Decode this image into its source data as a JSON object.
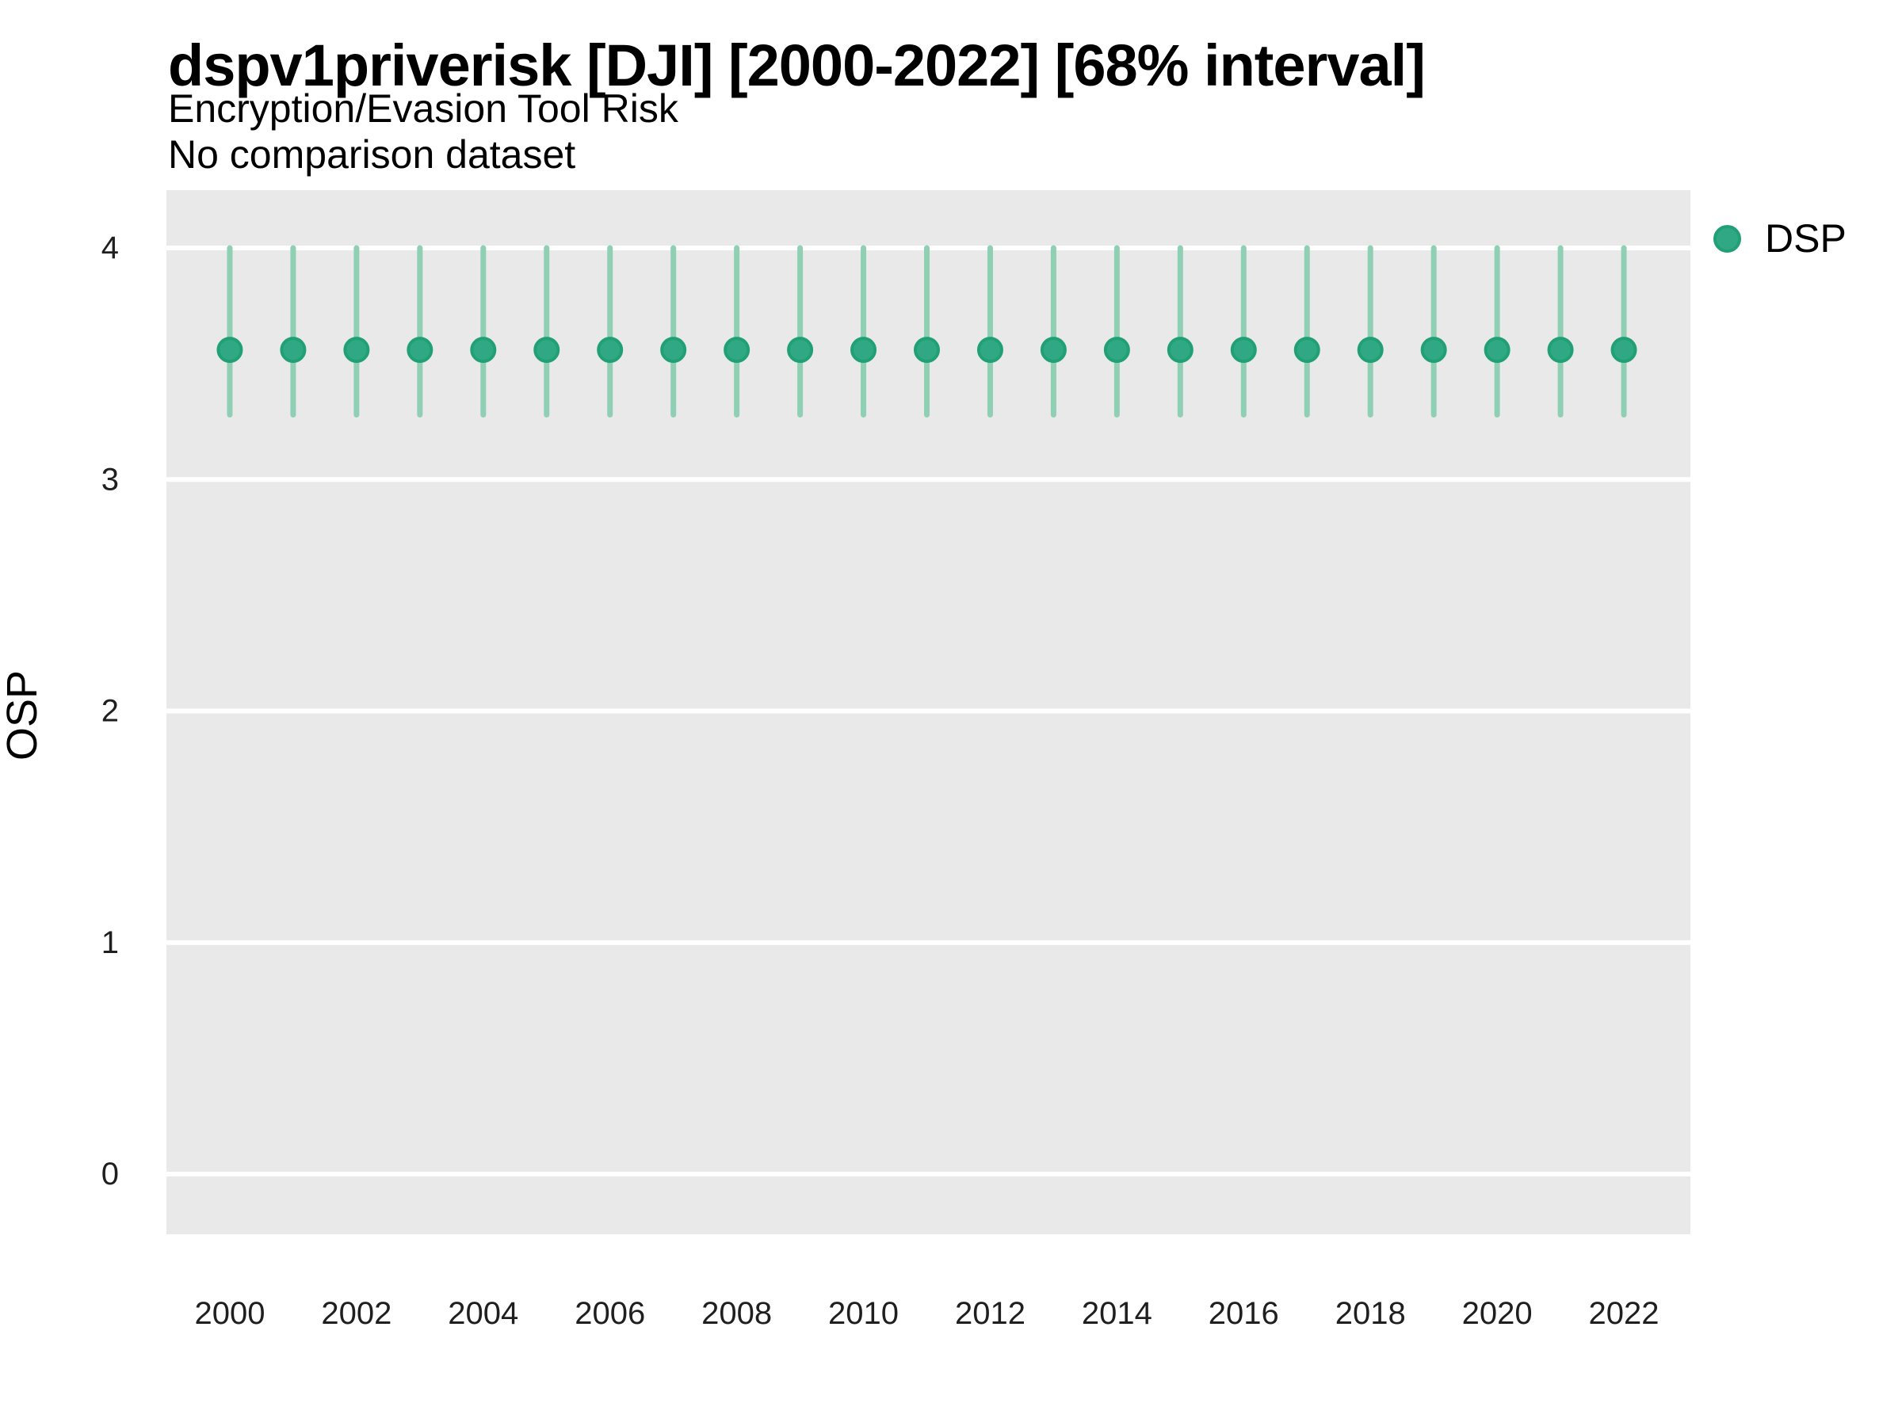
{
  "header": {
    "title": "dspv1priverisk [DJI] [2000-2022] [68% interval]",
    "subtitle": "Encryption/Evasion Tool Risk",
    "note": "No comparison dataset"
  },
  "axes": {
    "y_label": "OSP",
    "y_ticks": [
      4,
      3,
      2,
      1,
      0
    ],
    "x_tick_labels": [
      2000,
      2002,
      2004,
      2006,
      2008,
      2010,
      2012,
      2014,
      2016,
      2018,
      2020,
      2022
    ]
  },
  "legend": {
    "items": [
      {
        "label": "DSP",
        "color": "#31a884",
        "ring_color": "#21a076"
      }
    ]
  },
  "colors": {
    "panel_background": "#e9e9e9",
    "gridline": "#ffffff",
    "point_fill": "#31a884",
    "point_stroke": "#21a076",
    "interval_bar": "#8fd0b4",
    "tick_text": "#1f1f1f",
    "title_text": "#000000"
  },
  "chart_data": {
    "type": "pointrange",
    "title": "dspv1priverisk [DJI] [2000-2022] [68% interval]",
    "subtitle": "Encryption/Evasion Tool Risk",
    "note": "No comparison dataset",
    "interval_level": "68%",
    "xlabel": "",
    "ylabel": "OSP",
    "xlim": [
      1999.0,
      2023.05
    ],
    "ylim": [
      -0.26,
      4.25
    ],
    "y_tick_values": [
      0,
      1,
      2,
      3,
      4
    ],
    "x_tick_values": [
      2000,
      2002,
      2004,
      2006,
      2008,
      2010,
      2012,
      2014,
      2016,
      2018,
      2020,
      2022
    ],
    "grid": "horizontal-white-on-gray",
    "legend_position": "top-right",
    "x": [
      2000,
      2001,
      2002,
      2003,
      2004,
      2005,
      2006,
      2007,
      2008,
      2009,
      2010,
      2011,
      2012,
      2013,
      2014,
      2015,
      2016,
      2017,
      2018,
      2019,
      2020,
      2021,
      2022
    ],
    "series": [
      {
        "name": "DSP",
        "mean": [
          3.56,
          3.56,
          3.56,
          3.56,
          3.56,
          3.56,
          3.56,
          3.56,
          3.56,
          3.56,
          3.56,
          3.56,
          3.56,
          3.56,
          3.56,
          3.56,
          3.56,
          3.56,
          3.56,
          3.56,
          3.56,
          3.56,
          3.56
        ],
        "lower": [
          3.28,
          3.28,
          3.28,
          3.28,
          3.28,
          3.28,
          3.28,
          3.28,
          3.28,
          3.28,
          3.28,
          3.28,
          3.28,
          3.28,
          3.28,
          3.28,
          3.28,
          3.28,
          3.28,
          3.28,
          3.28,
          3.28,
          3.28
        ],
        "upper": [
          4.0,
          4.0,
          4.0,
          4.0,
          4.0,
          4.0,
          4.0,
          4.0,
          4.0,
          4.0,
          4.0,
          4.0,
          4.0,
          4.0,
          4.0,
          4.0,
          4.0,
          4.0,
          4.0,
          4.0,
          4.0,
          4.0,
          4.0
        ]
      }
    ]
  }
}
